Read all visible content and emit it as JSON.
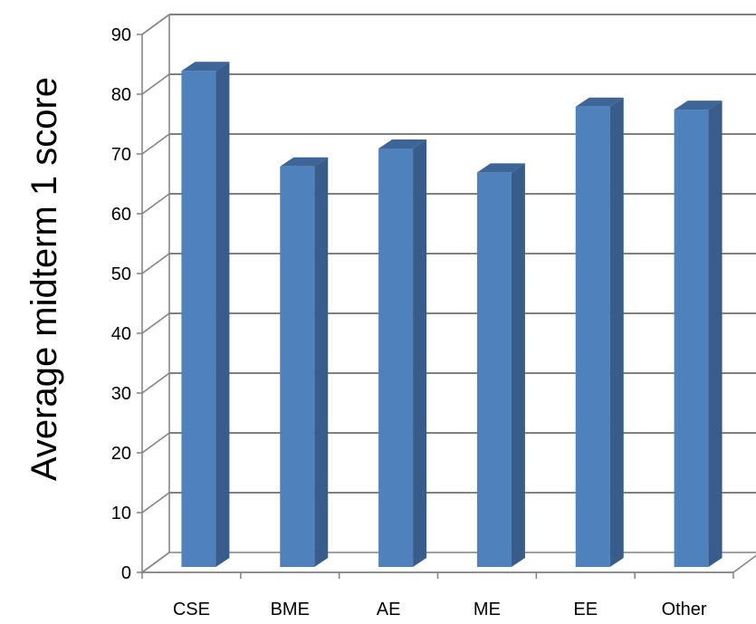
{
  "chart_data": {
    "type": "bar",
    "title": "",
    "xlabel": "",
    "ylabel": "Average midterm 1 score",
    "categories": [
      "CSE",
      "BME",
      "AE",
      "ME",
      "EE",
      "Other"
    ],
    "values": [
      83,
      67,
      70,
      66,
      77,
      76.5
    ],
    "ylim": [
      0,
      90
    ],
    "yticks": [
      0,
      10,
      20,
      30,
      40,
      50,
      60,
      70,
      80,
      90
    ],
    "grid": true,
    "legend": "none",
    "style": "3d-column",
    "colors": {
      "bar_front": "#4f81bd",
      "bar_side": "#385d8a",
      "bar_top": "#3d6597",
      "gridline": "#808080"
    }
  }
}
